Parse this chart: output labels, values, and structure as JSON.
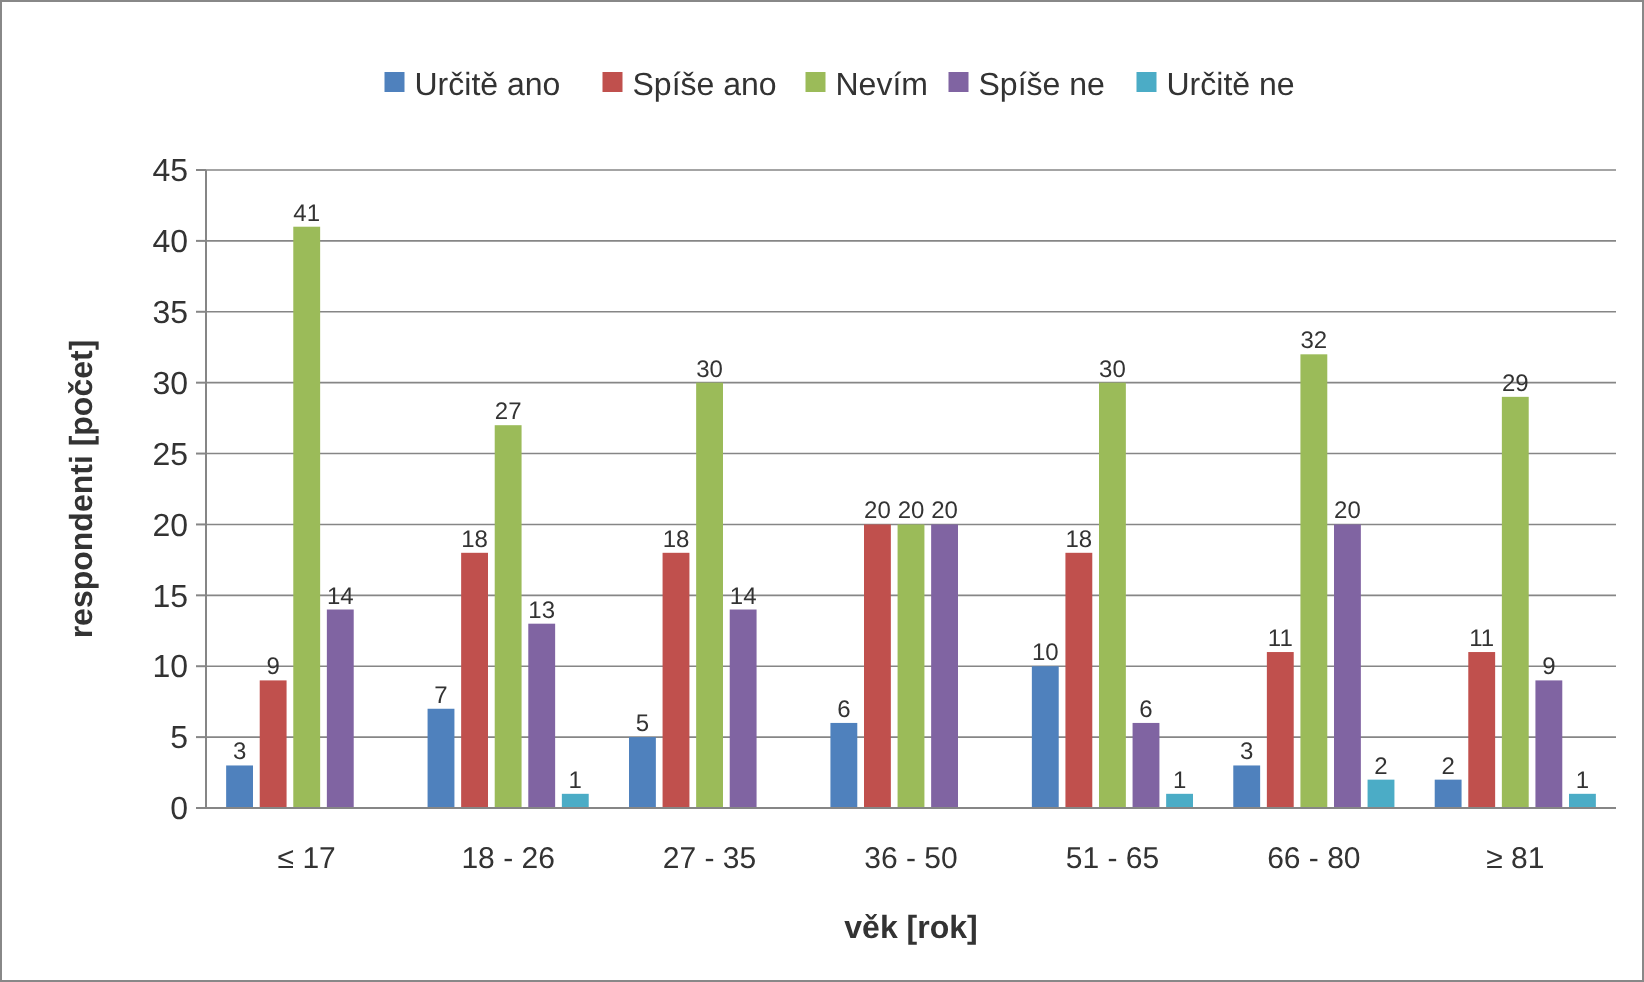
{
  "chart_data": {
    "type": "bar",
    "xlabel": "věk [rok]",
    "ylabel": "respondenti [počet]",
    "categories": [
      "≤ 17",
      "18 - 26",
      "27 - 35",
      "36 - 50",
      "51 - 65",
      "66 - 80",
      "≥ 81"
    ],
    "series": [
      {
        "name": "Určitě ano",
        "color": "#4f81bd",
        "values": [
          3,
          7,
          5,
          6,
          10,
          3,
          2
        ]
      },
      {
        "name": "Spíše ano",
        "color": "#c0504d",
        "values": [
          9,
          18,
          18,
          20,
          18,
          11,
          11
        ]
      },
      {
        "name": "Nevím",
        "color": "#9bbb59",
        "values": [
          41,
          27,
          30,
          20,
          30,
          32,
          29
        ]
      },
      {
        "name": "Spíše ne",
        "color": "#8064a2",
        "values": [
          14,
          13,
          14,
          20,
          6,
          20,
          9
        ]
      },
      {
        "name": "Určitě ne",
        "color": "#4bacc6",
        "values": [
          null,
          1,
          null,
          null,
          1,
          2,
          1
        ]
      }
    ],
    "ylim": [
      0,
      45
    ],
    "yticks": [
      0,
      5,
      10,
      15,
      20,
      25,
      30,
      35,
      40,
      45
    ],
    "grid": "y",
    "legend": "top",
    "data_labels": true
  }
}
